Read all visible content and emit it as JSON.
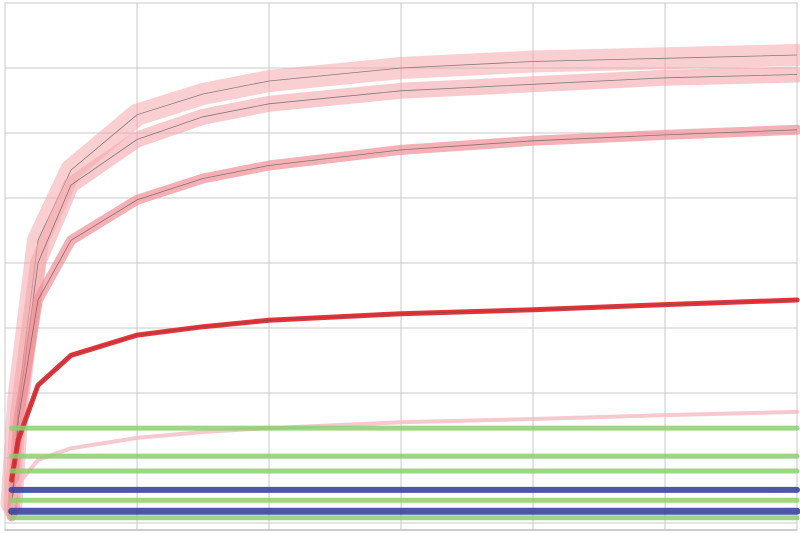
{
  "chart_data": {
    "type": "line",
    "x": [
      0.05,
      0.1,
      0.25,
      0.5,
      1,
      1.5,
      2,
      3,
      4,
      5,
      6
    ],
    "xlim": [
      0,
      6
    ],
    "xticks": [
      0,
      1,
      2,
      3,
      4,
      5,
      6
    ],
    "ylim": [
      0,
      8
    ],
    "yticks": [
      0,
      1,
      2,
      3,
      4,
      5,
      6,
      7,
      8
    ],
    "grid": true,
    "series": [
      {
        "color": "#f4a7ab",
        "values": [
          0.3,
          1.9,
          4.35,
          5.43,
          6.28,
          6.6,
          6.8,
          7.0,
          7.1,
          7.15,
          7.2
        ]
      },
      {
        "color": "#f4a7ab",
        "values": [
          0.2,
          1.7,
          4.0,
          5.2,
          5.9,
          6.25,
          6.45,
          6.65,
          6.75,
          6.85,
          6.9
        ]
      },
      {
        "color": "#ef8e94",
        "values": [
          0.1,
          1.58,
          3.43,
          4.35,
          4.97,
          5.3,
          5.5,
          5.74,
          5.88,
          5.97,
          6.05
        ]
      },
      {
        "color": "#e8262c",
        "values": [
          0.66,
          1.28,
          2.12,
          2.58,
          2.89,
          3.02,
          3.12,
          3.22,
          3.28,
          3.36,
          3.43
        ]
      },
      {
        "color": "#f2bcc0",
        "values": [
          0.2,
          0.6,
          0.97,
          1.15,
          1.31,
          1.4,
          1.46,
          1.55,
          1.6,
          1.66,
          1.71
        ]
      },
      {
        "color": "#8ccf6e",
        "values": [
          1.46,
          1.46,
          1.46,
          1.46,
          1.46,
          1.46,
          1.46,
          1.46,
          1.46,
          1.46,
          1.46
        ]
      },
      {
        "color": "#8ccf6e",
        "values": [
          1.03,
          1.03,
          1.03,
          1.03,
          1.03,
          1.03,
          1.03,
          1.03,
          1.03,
          1.03,
          1.03
        ]
      },
      {
        "color": "#8ccf6e",
        "values": [
          0.8,
          0.8,
          0.8,
          0.8,
          0.8,
          0.8,
          0.8,
          0.8,
          0.8,
          0.8,
          0.8
        ]
      },
      {
        "color": "#3a44a0",
        "values": [
          0.51,
          0.51,
          0.51,
          0.51,
          0.51,
          0.51,
          0.51,
          0.51,
          0.51,
          0.51,
          0.51
        ]
      },
      {
        "color": "#8ccf6e",
        "values": [
          0.35,
          0.35,
          0.35,
          0.35,
          0.35,
          0.35,
          0.35,
          0.35,
          0.35,
          0.35,
          0.35
        ]
      },
      {
        "color": "#3a44a0",
        "values": [
          0.18,
          0.18,
          0.18,
          0.18,
          0.18,
          0.18,
          0.18,
          0.18,
          0.18,
          0.18,
          0.18
        ]
      },
      {
        "color": "#8ccf6e",
        "values": [
          0.08,
          0.08,
          0.08,
          0.08,
          0.08,
          0.08,
          0.08,
          0.08,
          0.08,
          0.08,
          0.08
        ]
      }
    ]
  }
}
